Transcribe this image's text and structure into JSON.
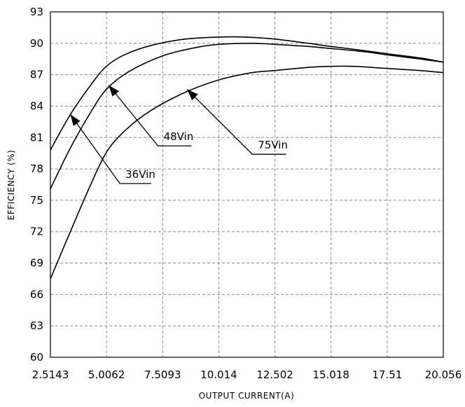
{
  "chart_data": {
    "type": "line",
    "title": "",
    "xlabel": "OUTPUT CURRENT(A)",
    "ylabel": "EFFICIENCY (%)",
    "x_ticks": [
      "2.5143",
      "5.0062",
      "7.5093",
      "10.014",
      "12.502",
      "15.018",
      "17.51",
      "20.056"
    ],
    "y_ticks": [
      "60",
      "63",
      "66",
      "69",
      "72",
      "75",
      "78",
      "81",
      "84",
      "87",
      "90",
      "93"
    ],
    "xlim": [
      2.5143,
      20.056
    ],
    "ylim": [
      60,
      93
    ],
    "grid": true,
    "series": [
      {
        "name": "36Vin",
        "x": [
          2.5143,
          3.4,
          4.3,
          5.0,
          5.8,
          7.0,
          8.5,
          10.014,
          11.2,
          12.502,
          14.0,
          15.018,
          16.5,
          17.51,
          19.0,
          20.056
        ],
        "y": [
          79.8,
          83.2,
          86.0,
          87.8,
          88.9,
          89.8,
          90.4,
          90.6,
          90.6,
          90.4,
          90.0,
          89.7,
          89.3,
          89.0,
          88.6,
          88.2
        ]
      },
      {
        "name": "48Vin",
        "x": [
          2.5143,
          3.4,
          4.3,
          5.0,
          6.0,
          7.5093,
          9.0,
          10.014,
          11.5,
          12.502,
          14.0,
          15.018,
          16.5,
          17.51,
          19.0,
          20.056
        ],
        "y": [
          76.1,
          80.0,
          83.4,
          85.6,
          87.3,
          88.8,
          89.6,
          89.9,
          90.0,
          89.9,
          89.7,
          89.5,
          89.2,
          88.9,
          88.5,
          88.2
        ]
      },
      {
        "name": "75Vin",
        "x": [
          2.5143,
          3.3,
          4.2,
          5.0062,
          5.9,
          7.0,
          8.5,
          10.014,
          11.5,
          12.502,
          14.0,
          15.018,
          16.0,
          17.51,
          19.0,
          20.056
        ],
        "y": [
          67.5,
          71.5,
          76.0,
          79.6,
          81.8,
          83.6,
          85.3,
          86.5,
          87.2,
          87.4,
          87.7,
          87.8,
          87.8,
          87.6,
          87.4,
          87.2
        ]
      }
    ],
    "annotations": [
      {
        "label": "36Vin",
        "arrow_to": [
          3.4,
          83.2
        ],
        "elbow": [
          5.6,
          76.6
        ],
        "line_end": [
          7.0,
          76.6
        ]
      },
      {
        "label": "48Vin",
        "arrow_to": [
          5.1,
          86.0
        ],
        "elbow": [
          7.3,
          80.2
        ],
        "line_end": [
          8.8,
          80.2
        ]
      },
      {
        "label": "75Vin",
        "arrow_to": [
          8.6,
          85.6
        ],
        "elbow": [
          11.5,
          79.4
        ],
        "line_end": [
          13.0,
          79.4
        ]
      }
    ]
  }
}
